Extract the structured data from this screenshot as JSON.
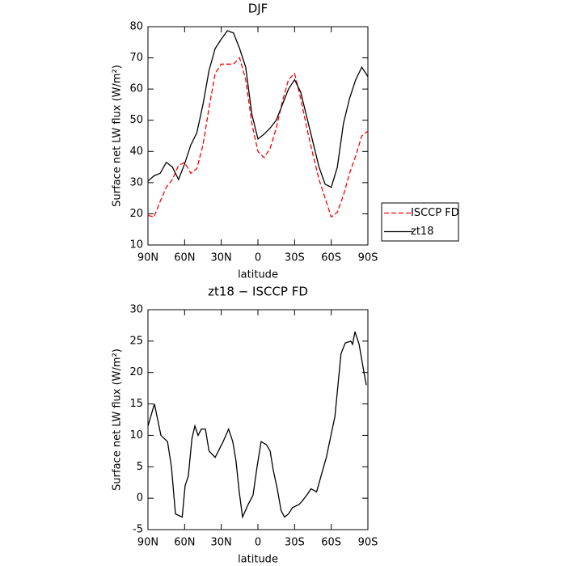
{
  "chart_data": [
    {
      "type": "line",
      "title": "DJF",
      "xlabel": "latitude",
      "ylabel": "Surface net LW flux (W/m²)",
      "x": [
        90,
        85,
        80,
        75,
        70,
        65,
        60,
        55,
        50,
        45,
        40,
        35,
        30,
        25,
        20,
        15,
        10,
        5,
        0,
        -5,
        -10,
        -15,
        -20,
        -25,
        -30,
        -35,
        -40,
        -45,
        -50,
        -55,
        -60,
        -65,
        -70,
        -75,
        -80,
        -85,
        -90
      ],
      "series": [
        {
          "name": "ISCCP FD",
          "color": "#ff0000",
          "dash": true,
          "values": [
            19.5,
            19,
            24,
            28.5,
            31,
            35.5,
            36.5,
            33,
            34.5,
            42,
            54,
            65,
            68,
            68,
            68,
            70,
            63,
            49,
            40,
            38,
            41,
            47.5,
            56,
            63,
            65,
            57,
            47.5,
            39,
            31,
            25,
            19,
            20.5,
            26,
            33,
            38.5,
            45,
            46.5
          ]
        },
        {
          "name": "zt18",
          "color": "#000000",
          "dash": false,
          "values": [
            30.5,
            32.2,
            33,
            36.5,
            35,
            31,
            36,
            42,
            46,
            55,
            66,
            73,
            76,
            78.7,
            78,
            73,
            67,
            52,
            44,
            45.5,
            47.5,
            50,
            55,
            60,
            63,
            59,
            51,
            43,
            35,
            29.5,
            28.5,
            35,
            49,
            57,
            63,
            67,
            64
          ]
        }
      ],
      "xlim": [
        90,
        -90
      ],
      "xticks": [
        {
          "value": 90,
          "label": "90N"
        },
        {
          "value": 60,
          "label": "60N"
        },
        {
          "value": 30,
          "label": "30N"
        },
        0,
        {
          "value": -30,
          "label": "30S"
        },
        {
          "value": -60,
          "label": "60S"
        },
        {
          "value": -90,
          "label": "90S"
        }
      ],
      "ylim": [
        10,
        80
      ],
      "yticks": [
        10,
        20,
        30,
        40,
        50,
        60,
        70,
        80
      ],
      "legend": "right"
    },
    {
      "type": "line",
      "title": "zt18 − ISCCP FD",
      "xlabel": "latitude",
      "ylabel": "Surface net LW flux (W/m²)",
      "x": [
        90,
        84.7,
        79.4,
        74,
        70.8,
        67.5,
        62,
        59.6,
        57,
        54,
        51.6,
        49,
        46.3,
        43,
        40,
        35,
        28.5,
        24,
        20.6,
        18,
        15.3,
        12.6,
        8,
        4,
        0.7,
        -2.6,
        -7,
        -10,
        -12.5,
        -15.8,
        -19,
        -21.8,
        -25,
        -28.3,
        -33.6,
        -36,
        -40,
        -43.4,
        -48,
        -51.6,
        -56,
        -63,
        -68,
        -71.5,
        -76,
        -77.5,
        -79.4,
        -82.8,
        -86.8,
        -88.7
      ],
      "series": [
        {
          "color": "#000000",
          "dash": false,
          "values": [
            11.5,
            15,
            10,
            9,
            5,
            -2.5,
            -3,
            2,
            3.5,
            9.5,
            11.5,
            10,
            11,
            11,
            7.5,
            6.5,
            9,
            11,
            9,
            6,
            1,
            -3,
            -1,
            0.5,
            5,
            9,
            8.5,
            7.5,
            4.5,
            1.5,
            -2,
            -3,
            -2.5,
            -1.5,
            -1,
            -0.5,
            0.5,
            1.5,
            1,
            3.5,
            6.5,
            13,
            23,
            24.7,
            25,
            24.5,
            26.5,
            24.5,
            20,
            18
          ]
        }
      ],
      "xlim": [
        90,
        -90
      ],
      "xticks": [
        {
          "value": 90,
          "label": "90N"
        },
        {
          "value": 60,
          "label": "60N"
        },
        {
          "value": 30,
          "label": "30N"
        },
        0,
        {
          "value": -30,
          "label": "30S"
        },
        {
          "value": -60,
          "label": "60S"
        },
        {
          "value": -90,
          "label": "90S"
        }
      ],
      "ylim": [
        -5,
        30
      ],
      "yticks": [
        -5,
        0,
        5,
        10,
        15,
        20,
        25,
        30
      ]
    }
  ]
}
